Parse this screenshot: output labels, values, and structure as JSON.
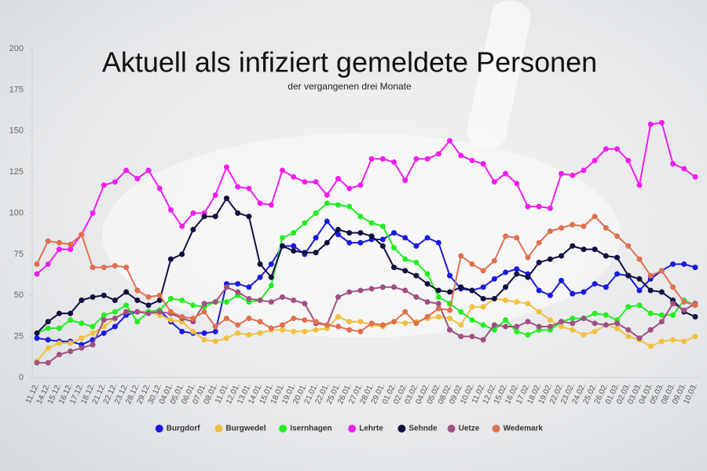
{
  "chart_data": {
    "type": "line",
    "title": "Aktuell als infiziert gemeldete Personen",
    "subtitle": "der vergangenen drei Monate",
    "categories": [
      "11.12.",
      "14.12.",
      "15.12.",
      "16.12.",
      "17.12.",
      "18.12.",
      "21.12.",
      "22.12.",
      "23.12.",
      "28.12.",
      "29.12.",
      "30.12.",
      "04.01.",
      "05.01.",
      "06.01.",
      "07.01.",
      "08.01.",
      "11.01.",
      "12.01.",
      "13.01.",
      "14.01.",
      "15.01.",
      "18.01.",
      "19.01.",
      "20.01.",
      "21.01.",
      "22.01.",
      "25.01.",
      "26.01.",
      "27.01.",
      "28.01.",
      "29.01.",
      "01.02.",
      "02.02.",
      "03.02.",
      "04.02.",
      "05.02.",
      "08.02.",
      "09.02.",
      "10.02.",
      "11.02.",
      "12.02.",
      "15.02.",
      "16.02.",
      "17.02.",
      "18.02.",
      "19.02.",
      "22.02.",
      "23.02.",
      "24.02.",
      "25.02.",
      "26.02.",
      "01.03.",
      "02.03.",
      "03.03.",
      "04.03.",
      "05.03.",
      "08.03.",
      "09.03.",
      "10.03."
    ],
    "series": [
      {
        "name": "Burgdorf",
        "color": "#1a1adf",
        "values": [
          24,
          23,
          22,
          22,
          20,
          23,
          27,
          31,
          38,
          40,
          40,
          41,
          34,
          28,
          27,
          27,
          28,
          57,
          57,
          55,
          61,
          69,
          80,
          80,
          75,
          85,
          95,
          87,
          82,
          82,
          84,
          84,
          88,
          85,
          80,
          85,
          82,
          62,
          54,
          53,
          55,
          60,
          64,
          66,
          63,
          53,
          50,
          59,
          51,
          52,
          57,
          55,
          63,
          62,
          53,
          60,
          65,
          69,
          69,
          67
        ]
      },
      {
        "name": "Burgwedel",
        "color": "#f0c040",
        "values": [
          10,
          18,
          21,
          21,
          24,
          27,
          31,
          36,
          40,
          40,
          40,
          38,
          35,
          34,
          28,
          23,
          22,
          24,
          27,
          26,
          27,
          29,
          29,
          28,
          28,
          29,
          30,
          37,
          34,
          34,
          32,
          31,
          34,
          33,
          34,
          36,
          37,
          36,
          32,
          43,
          43,
          48,
          47,
          46,
          45,
          40,
          35,
          31,
          29,
          26,
          28,
          32,
          30,
          25,
          23,
          19,
          22,
          23,
          22,
          25
        ]
      },
      {
        "name": "Isernhagen",
        "color": "#22ee22",
        "values": [
          27,
          30,
          30,
          35,
          33,
          31,
          38,
          40,
          44,
          34,
          40,
          41,
          48,
          47,
          44,
          43,
          46,
          46,
          50,
          46,
          47,
          56,
          85,
          88,
          94,
          100,
          106,
          105,
          104,
          98,
          94,
          92,
          79,
          72,
          70,
          63,
          49,
          45,
          40,
          35,
          32,
          29,
          35,
          28,
          26,
          29,
          29,
          34,
          36,
          36,
          39,
          38,
          35,
          43,
          44,
          39,
          38,
          38,
          47,
          44
        ]
      },
      {
        "name": "Lehrte",
        "color": "#f01ef0",
        "values": [
          63,
          69,
          78,
          78,
          87,
          100,
          117,
          119,
          126,
          121,
          126,
          115,
          102,
          92,
          100,
          100,
          111,
          128,
          116,
          115,
          106,
          105,
          126,
          122,
          119,
          119,
          111,
          121,
          115,
          117,
          133,
          133,
          131,
          120,
          133,
          133,
          136,
          144,
          135,
          132,
          130,
          119,
          124,
          118,
          104,
          104,
          103,
          124,
          123,
          126,
          132,
          139,
          139,
          132,
          117,
          154,
          155,
          130,
          127,
          122
        ]
      },
      {
        "name": "Sehnde",
        "color": "#101040",
        "values": [
          27,
          34,
          39,
          39,
          47,
          49,
          50,
          47,
          52,
          47,
          44,
          47,
          72,
          75,
          90,
          98,
          98,
          109,
          100,
          98,
          69,
          61,
          80,
          77,
          76,
          76,
          82,
          90,
          88,
          88,
          86,
          80,
          67,
          65,
          62,
          57,
          53,
          52,
          55,
          53,
          48,
          48,
          55,
          63,
          61,
          70,
          72,
          74,
          80,
          78,
          78,
          74,
          73,
          62,
          60,
          53,
          52,
          47,
          40,
          37
        ]
      },
      {
        "name": "Uetze",
        "color": "#a05080",
        "values": [
          9,
          9,
          14,
          16,
          18,
          20,
          35,
          36,
          40,
          40,
          39,
          40,
          39,
          36,
          34,
          45,
          46,
          55,
          52,
          48,
          47,
          46,
          49,
          47,
          45,
          33,
          32,
          49,
          52,
          53,
          54,
          55,
          55,
          53,
          49,
          46,
          45,
          29,
          25,
          25,
          23,
          32,
          31,
          31,
          34,
          31,
          31,
          34,
          33,
          36,
          33,
          32,
          33,
          29,
          24,
          29,
          34,
          45,
          41,
          45
        ]
      },
      {
        "name": "Wedemark",
        "color": "#e07050",
        "values": [
          69,
          83,
          82,
          81,
          87,
          67,
          67,
          68,
          67,
          53,
          49,
          50,
          40,
          37,
          36,
          40,
          31,
          36,
          32,
          36,
          34,
          30,
          32,
          36,
          35,
          34,
          32,
          31,
          29,
          28,
          33,
          32,
          34,
          40,
          33,
          37,
          42,
          41,
          74,
          69,
          65,
          71,
          86,
          85,
          73,
          82,
          89,
          91,
          93,
          92,
          98,
          91,
          86,
          80,
          72,
          62,
          65,
          55,
          46,
          44
        ]
      }
    ],
    "ylim": [
      0,
      200
    ],
    "yticks": [
      0,
      25,
      50,
      75,
      100,
      125,
      150,
      175,
      200
    ],
    "grid": false,
    "legend": "bottom"
  }
}
